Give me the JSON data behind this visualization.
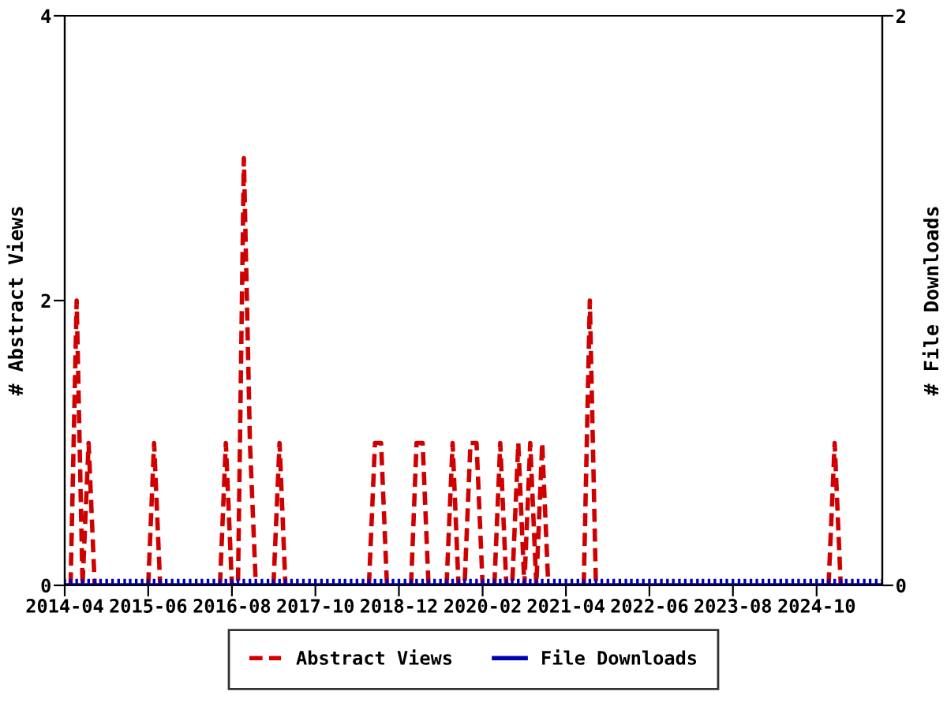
{
  "chart_data": {
    "type": "line",
    "ylabel": "# Abstract Views",
    "y2label": "# File Downloads",
    "x": [
      "2014-04",
      "2014-05",
      "2014-06",
      "2014-07",
      "2014-08",
      "2014-09",
      "2014-10",
      "2014-11",
      "2014-12",
      "2015-01",
      "2015-02",
      "2015-03",
      "2015-04",
      "2015-05",
      "2015-06",
      "2015-07",
      "2015-08",
      "2015-09",
      "2015-10",
      "2015-11",
      "2015-12",
      "2016-01",
      "2016-02",
      "2016-03",
      "2016-04",
      "2016-05",
      "2016-06",
      "2016-07",
      "2016-08",
      "2016-09",
      "2016-10",
      "2016-11",
      "2016-12",
      "2017-01",
      "2017-02",
      "2017-03",
      "2017-04",
      "2017-05",
      "2017-06",
      "2017-07",
      "2017-08",
      "2017-09",
      "2017-10",
      "2017-11",
      "2017-12",
      "2018-01",
      "2018-02",
      "2018-03",
      "2018-04",
      "2018-05",
      "2018-06",
      "2018-07",
      "2018-08",
      "2018-09",
      "2018-10",
      "2018-11",
      "2018-12",
      "2019-01",
      "2019-02",
      "2019-03",
      "2019-04",
      "2019-05",
      "2019-06",
      "2019-07",
      "2019-08",
      "2019-09",
      "2019-10",
      "2019-11",
      "2019-12",
      "2020-01",
      "2020-02",
      "2020-03",
      "2020-04",
      "2020-05",
      "2020-06",
      "2020-07",
      "2020-08",
      "2020-09",
      "2020-10",
      "2020-11",
      "2020-12",
      "2021-01",
      "2021-02",
      "2021-03",
      "2021-04",
      "2021-05",
      "2021-06",
      "2021-07",
      "2021-08",
      "2021-09",
      "2021-10",
      "2021-11",
      "2021-12",
      "2022-01",
      "2022-02",
      "2022-03",
      "2022-04",
      "2022-05",
      "2022-06",
      "2022-07",
      "2022-08",
      "2022-09",
      "2022-10",
      "2022-11",
      "2022-12",
      "2023-01",
      "2023-02",
      "2023-03",
      "2023-04",
      "2023-05",
      "2023-06",
      "2023-07",
      "2023-08",
      "2023-09",
      "2023-10",
      "2023-11",
      "2023-12",
      "2024-01",
      "2024-02",
      "2024-03",
      "2024-04",
      "2024-05",
      "2024-06",
      "2024-07",
      "2024-08",
      "2024-09",
      "2024-10",
      "2024-11",
      "2024-12",
      "2025-01",
      "2025-02",
      "2025-03",
      "2025-04",
      "2025-05",
      "2025-06",
      "2025-07",
      "2025-08",
      "2025-09"
    ],
    "series": [
      {
        "name": "Abstract Views",
        "color": "#d00000",
        "line_style": "dashed",
        "marker": "none",
        "values": [
          null,
          0,
          2,
          0,
          1,
          0,
          null,
          null,
          null,
          null,
          null,
          null,
          null,
          null,
          0,
          1,
          0,
          null,
          null,
          null,
          null,
          null,
          null,
          null,
          null,
          null,
          0,
          1,
          0,
          0,
          3,
          1,
          0,
          null,
          null,
          0,
          1,
          0,
          null,
          null,
          null,
          null,
          null,
          null,
          null,
          null,
          null,
          null,
          null,
          null,
          null,
          0,
          1,
          1,
          0,
          null,
          null,
          null,
          0,
          1,
          1,
          0,
          null,
          null,
          0,
          1,
          0,
          0,
          1,
          1,
          0,
          null,
          0,
          1,
          0,
          0,
          1,
          0,
          1,
          0,
          1,
          0,
          null,
          null,
          null,
          null,
          null,
          0,
          2,
          0,
          null,
          null,
          null,
          null,
          null,
          null,
          null,
          null,
          null,
          null,
          null,
          null,
          null,
          null,
          null,
          null,
          null,
          null,
          null,
          null,
          null,
          null,
          null,
          null,
          null,
          null,
          null,
          null,
          null,
          null,
          null,
          null,
          null,
          null,
          null,
          null,
          null,
          null,
          0,
          1,
          0,
          null,
          null,
          null,
          null,
          null,
          null,
          null
        ]
      },
      {
        "name": "File Downloads",
        "color": "#0000b0",
        "line_style": "solid",
        "marker": "cross",
        "axis": "y2",
        "values": [
          0,
          0,
          0,
          0,
          0,
          0,
          0,
          0,
          0,
          0,
          0,
          0,
          0,
          0,
          0,
          0,
          0,
          0,
          0,
          0,
          0,
          0,
          0,
          0,
          0,
          0,
          0,
          0,
          0,
          0,
          0,
          0,
          0,
          0,
          0,
          0,
          0,
          0,
          0,
          0,
          0,
          0,
          0,
          0,
          0,
          0,
          0,
          0,
          0,
          0,
          0,
          0,
          0,
          0,
          0,
          0,
          0,
          0,
          0,
          0,
          0,
          0,
          0,
          0,
          0,
          0,
          0,
          0,
          0,
          0,
          0,
          0,
          0,
          0,
          0,
          0,
          0,
          0,
          0,
          0,
          0,
          0,
          0,
          0,
          0,
          0,
          0,
          0,
          0,
          0,
          0,
          0,
          0,
          0,
          0,
          0,
          0,
          0,
          0,
          0,
          0,
          0,
          0,
          0,
          0,
          0,
          0,
          0,
          0,
          0,
          0,
          0,
          0,
          0,
          0,
          0,
          0,
          0,
          0,
          0,
          0,
          0,
          0,
          0,
          0,
          0,
          0,
          0,
          0,
          0,
          0,
          0,
          0,
          0,
          0,
          0,
          0,
          0
        ]
      }
    ],
    "xlim": [
      "2014-04",
      "2025-09"
    ],
    "xticks": [
      "2014-04",
      "2015-06",
      "2016-08",
      "2017-10",
      "2018-12",
      "2020-02",
      "2021-04",
      "2022-06",
      "2023-08",
      "2024-10"
    ],
    "ylim": [
      0,
      4
    ],
    "yticks": [
      0,
      2,
      4
    ],
    "y2lim": [
      0,
      2
    ],
    "y2ticks": [
      0,
      2
    ],
    "grid": false,
    "legend": "bottom"
  }
}
